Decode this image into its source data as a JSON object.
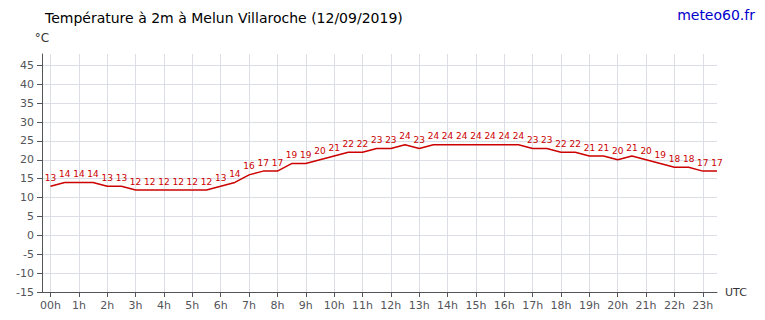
{
  "chart_data": {
    "type": "line",
    "title": "Température à 2m à Melun Villaroche (12/09/2019)",
    "annotations": [
      "meteo60.fr"
    ],
    "x_label": "UTC",
    "y_label": "°C",
    "x": [
      0,
      0.5,
      1,
      1.5,
      2,
      2.5,
      3,
      3.5,
      4,
      4.5,
      5,
      5.5,
      6,
      6.5,
      7,
      7.5,
      8,
      8.5,
      9,
      9.5,
      10,
      10.5,
      11,
      11.5,
      12,
      12.5,
      13,
      13.5,
      14,
      14.5,
      15,
      15.5,
      16,
      16.5,
      17,
      17.5,
      18,
      18.5,
      19,
      19.5,
      20,
      20.5,
      21,
      21.5,
      22,
      22.5,
      23,
      23.5
    ],
    "values": [
      13,
      14,
      14,
      14,
      13,
      13,
      12,
      12,
      12,
      12,
      12,
      12,
      13,
      14,
      16,
      17,
      17,
      19,
      19,
      20,
      21,
      22,
      22,
      23,
      23,
      24,
      23,
      24,
      24,
      24,
      24,
      24,
      24,
      24,
      23,
      23,
      22,
      22,
      21,
      21,
      20,
      21,
      20,
      19,
      18,
      18,
      17,
      17
    ],
    "color": "#cc0000",
    "xlim": [
      -0.3,
      23.5
    ],
    "xticks": [
      {
        "value": 0,
        "label": "00h"
      },
      {
        "value": 1,
        "label": "1h"
      },
      {
        "value": 2,
        "label": "2h"
      },
      {
        "value": 3,
        "label": "3h"
      },
      {
        "value": 4,
        "label": "4h"
      },
      {
        "value": 5,
        "label": "5h"
      },
      {
        "value": 6,
        "label": "6h"
      },
      {
        "value": 7,
        "label": "7h"
      },
      {
        "value": 8,
        "label": "8h"
      },
      {
        "value": 9,
        "label": "9h"
      },
      {
        "value": 10,
        "label": "10h"
      },
      {
        "value": 11,
        "label": "11h"
      },
      {
        "value": 12,
        "label": "12h"
      },
      {
        "value": 13,
        "label": "13h"
      },
      {
        "value": 14,
        "label": "14h"
      },
      {
        "value": 15,
        "label": "15h"
      },
      {
        "value": 16,
        "label": "16h"
      },
      {
        "value": 17,
        "label": "17h"
      },
      {
        "value": 18,
        "label": "18h"
      },
      {
        "value": 19,
        "label": "19h"
      },
      {
        "value": 20,
        "label": "20h"
      },
      {
        "value": 21,
        "label": "21h"
      },
      {
        "value": 22,
        "label": "22h"
      },
      {
        "value": 23,
        "label": "23h"
      }
    ],
    "ylim": [
      -15,
      48
    ],
    "yticks": [
      -15,
      -10,
      -5,
      0,
      5,
      10,
      15,
      20,
      25,
      30,
      35,
      40,
      45
    ],
    "grid": true,
    "data_labels": true
  }
}
